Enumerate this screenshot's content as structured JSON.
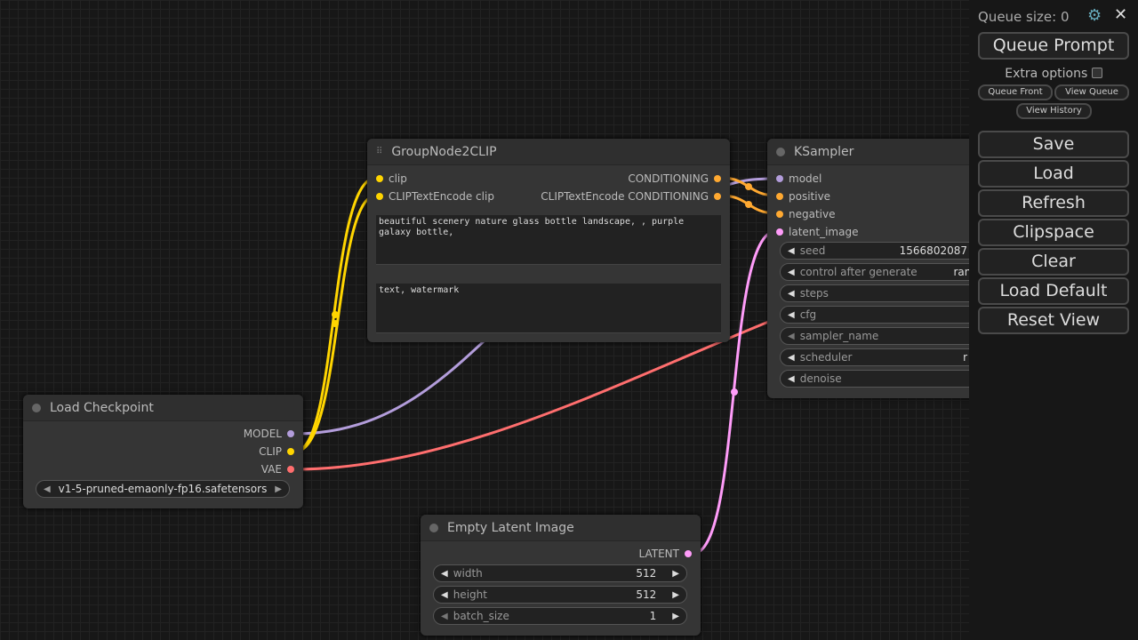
{
  "colors": {
    "model": "#b39ddb",
    "clip": "#ffd500",
    "vae": "#ff6e6e",
    "conditioning": "#ffa931",
    "latent": "#ff9cf9"
  },
  "group_node": {
    "title": "GroupNode2CLIP",
    "inputs": [
      "clip",
      "CLIPTextEncode clip"
    ],
    "outputs": [
      "CONDITIONING",
      "CLIPTextEncode CONDITIONING"
    ],
    "text1": "beautiful scenery nature glass bottle landscape, , purple galaxy bottle,",
    "text2": "text, watermark"
  },
  "ksampler": {
    "title": "KSampler",
    "inputs": [
      "model",
      "positive",
      "negative",
      "latent_image"
    ],
    "widgets": [
      {
        "label": "seed",
        "value": "1566802087"
      },
      {
        "label": "control after generate",
        "value": "rand"
      },
      {
        "label": "steps",
        "value": ""
      },
      {
        "label": "cfg",
        "value": ""
      },
      {
        "label": "sampler_name",
        "value": ""
      },
      {
        "label": "scheduler",
        "value": "r"
      },
      {
        "label": "denoise",
        "value": ""
      }
    ]
  },
  "checkpoint": {
    "title": "Load Checkpoint",
    "outputs": [
      "MODEL",
      "CLIP",
      "VAE"
    ],
    "ckpt_name": "v1-5-pruned-emaonly-fp16.safetensors"
  },
  "latent": {
    "title": "Empty Latent Image",
    "output": "LATENT",
    "widgets": [
      {
        "label": "width",
        "value": "512"
      },
      {
        "label": "height",
        "value": "512"
      },
      {
        "label": "batch_size",
        "value": "1"
      }
    ]
  },
  "menu": {
    "queue_size": "Queue size: 0",
    "queue_prompt": "Queue Prompt",
    "extra_options": "Extra options",
    "queue_front": "Queue Front",
    "view_queue": "View Queue",
    "view_history": "View History",
    "buttons": [
      "Save",
      "Load",
      "Refresh",
      "Clipspace",
      "Clear",
      "Load Default",
      "Reset View"
    ]
  }
}
